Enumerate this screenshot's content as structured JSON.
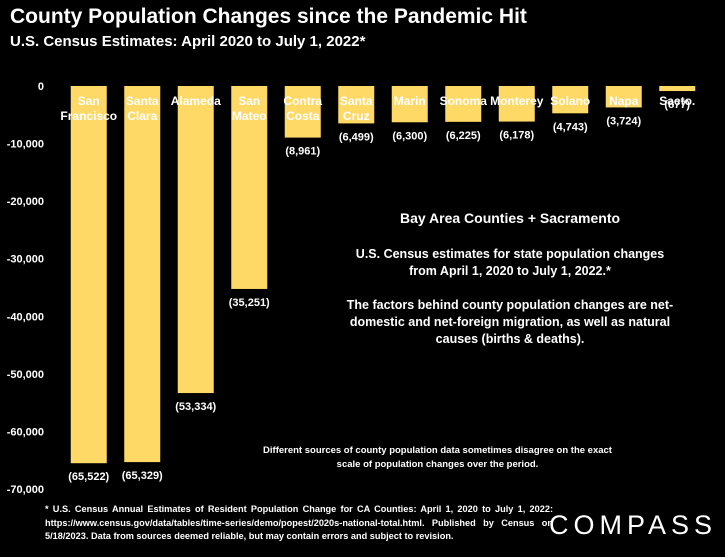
{
  "header": {
    "title": "County Population Changes since the Pandemic Hit",
    "subtitle": "U.S. Census Estimates: April 2020 to July 1, 2022*"
  },
  "chart_data": {
    "type": "bar",
    "categories": [
      [
        "San",
        "Francisco"
      ],
      [
        "Santa",
        "Clara"
      ],
      [
        "Alameda"
      ],
      [
        "San",
        "Mateo"
      ],
      [
        "Contra",
        "Costa"
      ],
      [
        "Santa",
        "Cruz"
      ],
      [
        "Marin"
      ],
      [
        "Sonoma"
      ],
      [
        "Monterey"
      ],
      [
        "Solano"
      ],
      [
        "Napa"
      ],
      [
        "Sacto."
      ]
    ],
    "values": [
      -65522,
      -65329,
      -53334,
      -35251,
      -8961,
      -6499,
      -6300,
      -6225,
      -6178,
      -4743,
      -3724,
      -877
    ],
    "data_labels": [
      "(65,522)",
      "(65,329)",
      "(53,334)",
      "(35,251)",
      "(8,961)",
      "(6,499)",
      "(6,300)",
      "(6,225)",
      "(6,178)",
      "(4,743)",
      "(3,724)",
      "(877)"
    ],
    "ylim": [
      -70000,
      0
    ],
    "yticks": [
      0,
      -10000,
      -20000,
      -30000,
      -40000,
      -50000,
      -60000,
      -70000
    ],
    "ytick_labels": [
      "0",
      "-10,000",
      "-20,000",
      "-30,000",
      "-40,000",
      "-50,000",
      "-60,000",
      "-70,000"
    ],
    "bar_color": "#FFD966",
    "grid": false,
    "legend": "none"
  },
  "annotations": {
    "heading": "Bay Area Counties + Sacramento",
    "line1": "U.S. Census estimates for state population changes from April 1, 2020 to July 1, 2022.*",
    "line2": "The factors behind county population changes are net-domestic and net-foreign migration, as well as natural causes (births & deaths).",
    "note": "Different sources of county population data sometimes disagree on the exact scale of population changes over the period."
  },
  "footnote": "* U.S. Census Annual Estimates of Resident Population Change for CA Counties: April 1, 2020 to July 1, 2022: https://www.census.gov/data/tables/time-series/demo/popest/2020s-national-total.html. Published by Census on 5/18/2023. Data from sources deemed reliable, but may contain errors and subject to revision.",
  "logo": "COMPASS",
  "colors": {
    "background": "#000000",
    "bars": "#FFD966",
    "text": "#FFFFFF"
  }
}
